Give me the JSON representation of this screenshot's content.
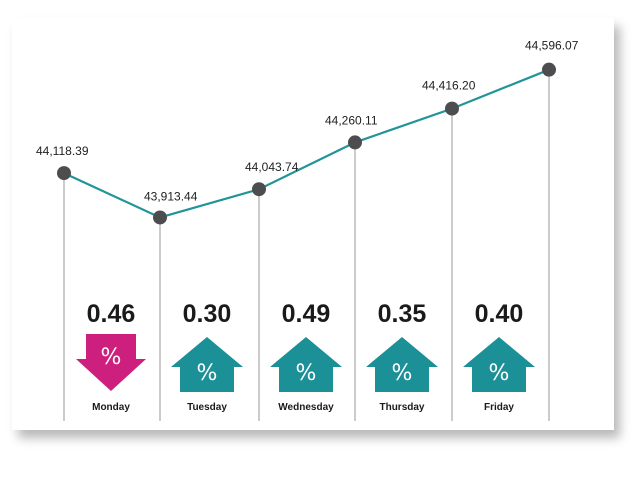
{
  "colors": {
    "line": "#21949a",
    "point": "#4d4d4f",
    "drop_line": "#9a9a9a",
    "up": "#1c9097",
    "down": "#cd1f7d"
  },
  "arrow_symbol": "%",
  "chart_data": {
    "type": "line",
    "title": "",
    "xlabel": "",
    "ylabel": "",
    "categories": [
      "Monday",
      "Tuesday",
      "Wednesday",
      "Thursday",
      "Friday",
      ""
    ],
    "values": [
      44118.39,
      43913.44,
      44043.74,
      44260.11,
      44416.2,
      44596.07
    ],
    "value_labels": [
      "44,118.39",
      "43,913.44",
      "44,043.74",
      "44,260.11",
      "44,416.20",
      "44,596.07"
    ],
    "ylim": [
      43800,
      44650
    ],
    "grid": false,
    "legend": "none",
    "changes": [
      {
        "day": "Monday",
        "value": "0.46",
        "direction": "down"
      },
      {
        "day": "Tuesday",
        "value": "0.30",
        "direction": "up"
      },
      {
        "day": "Wednesday",
        "value": "0.49",
        "direction": "up"
      },
      {
        "day": "Thursday",
        "value": "0.35",
        "direction": "up"
      },
      {
        "day": "Friday",
        "value": "0.40",
        "direction": "up"
      }
    ]
  }
}
